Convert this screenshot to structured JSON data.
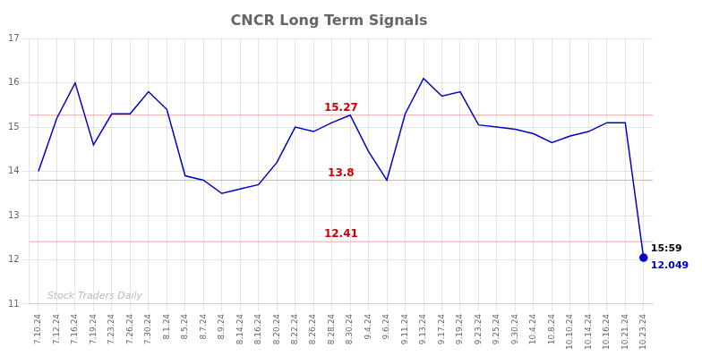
{
  "chart_data": {
    "type": "line",
    "title": "CNCR Long Term Signals",
    "categories": [
      "7.10.24",
      "7.12.24",
      "7.16.24",
      "7.19.24",
      "7.23.24",
      "7.26.24",
      "7.30.24",
      "8.1.24",
      "8.5.24",
      "8.7.24",
      "8.9.24",
      "8.14.24",
      "8.16.24",
      "8.20.24",
      "8.22.24",
      "8.26.24",
      "8.28.24",
      "8.30.24",
      "9.4.24",
      "9.6.24",
      "9.11.24",
      "9.13.24",
      "9.17.24",
      "9.19.24",
      "9.23.24",
      "9.25.24",
      "9.30.24",
      "10.4.24",
      "10.8.24",
      "10.10.24",
      "10.14.24",
      "10.16.24",
      "10.21.24",
      "10.23.24"
    ],
    "values": [
      14.0,
      15.2,
      16.0,
      14.6,
      15.3,
      15.3,
      15.8,
      15.4,
      13.9,
      13.8,
      13.5,
      13.6,
      13.7,
      14.2,
      15.0,
      14.9,
      15.1,
      15.27,
      14.45,
      13.8,
      15.3,
      16.1,
      15.7,
      15.8,
      15.05,
      15.0,
      14.95,
      14.85,
      14.65,
      14.8,
      14.9,
      15.1,
      15.1,
      12.049
    ],
    "color": "#0000cc",
    "marker": "circle",
    "hlines": [
      {
        "value": 15.27,
        "color": "#cc0000"
      },
      {
        "value": 13.8,
        "color": "#cc0000"
      },
      {
        "value": 12.41,
        "color": "#cc0000"
      }
    ],
    "annotations": [
      {
        "text": "15:59",
        "color": "#000000",
        "anchor": "last_point",
        "position": "above"
      },
      {
        "text": "12.049",
        "color": "#0000cc",
        "anchor": "last_point",
        "position": "below"
      },
      {
        "text": "Stock Traders Daily",
        "color": "#bbbbbb",
        "anchor": "plot",
        "position": "bottom_left"
      }
    ],
    "ylim": [
      11,
      17
    ],
    "yticks": [
      11,
      12,
      13,
      14,
      15,
      16,
      17
    ],
    "grid": true
  }
}
